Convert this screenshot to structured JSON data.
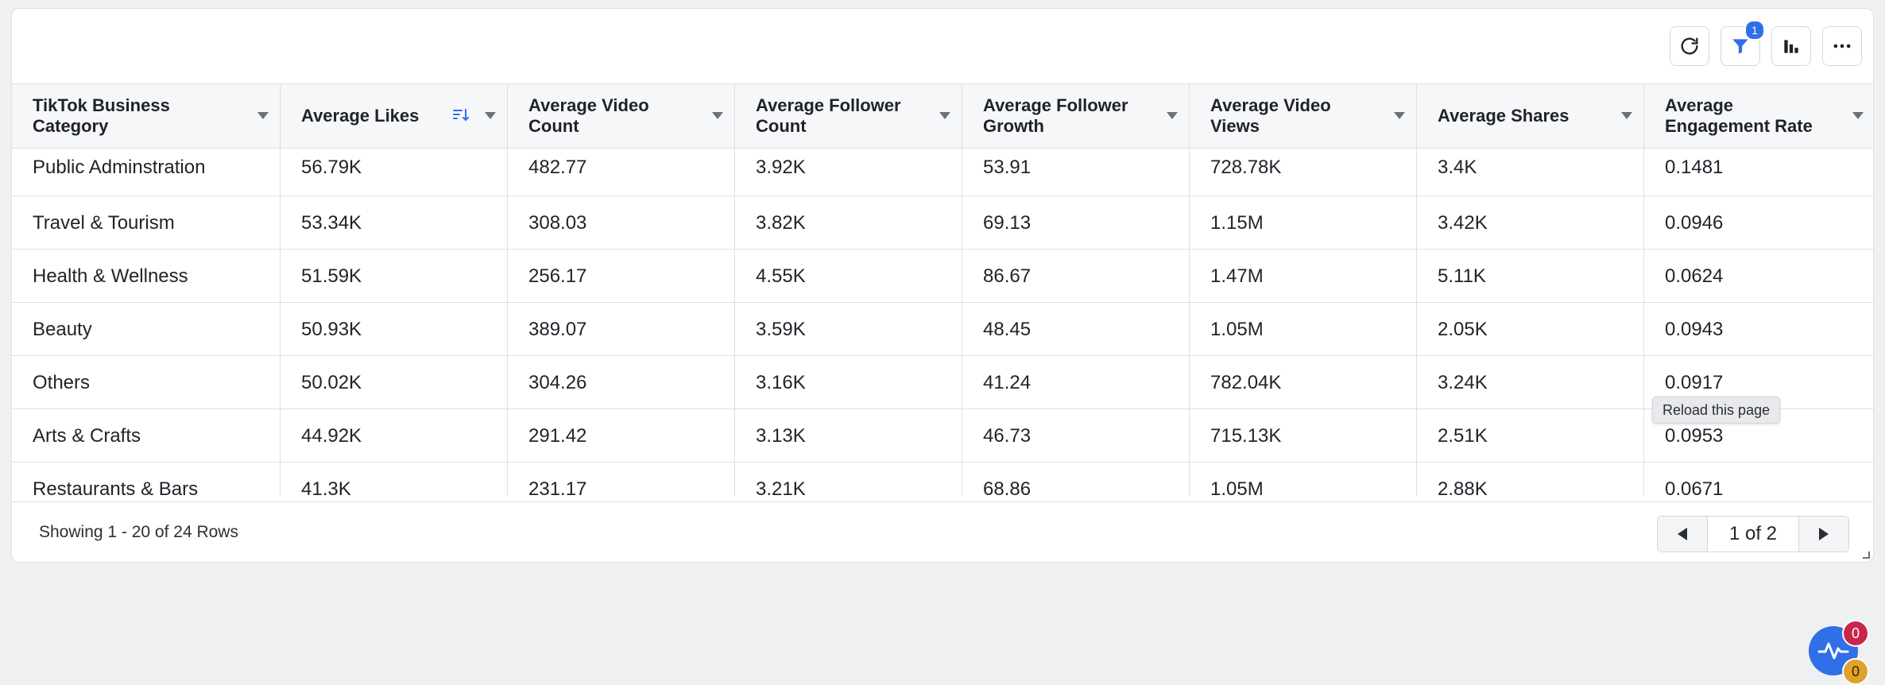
{
  "toolbar": {
    "refresh_icon": "refresh-icon",
    "filter_icon": "filter-icon",
    "filter_badge": "1",
    "chart_icon": "bar-chart-icon",
    "more_icon": "more-icon",
    "accent_color": "#2f6fe8"
  },
  "table": {
    "columns": [
      "TikTok Business Category",
      "Average Likes",
      "Average Video Count",
      "Average Follower Count",
      "Average Follower Growth",
      "Average Video Views",
      "Average Shares",
      "Average Engagement Rate"
    ],
    "sorted_column": "Average Likes",
    "rows": [
      [
        "Public Adminstration",
        "56.79K",
        "482.77",
        "3.92K",
        "53.91",
        "728.78K",
        "3.4K",
        "0.1481"
      ],
      [
        "Travel & Tourism",
        "53.34K",
        "308.03",
        "3.82K",
        "69.13",
        "1.15M",
        "3.42K",
        "0.0946"
      ],
      [
        "Health & Wellness",
        "51.59K",
        "256.17",
        "4.55K",
        "86.67",
        "1.47M",
        "5.11K",
        "0.0624"
      ],
      [
        "Beauty",
        "50.93K",
        "389.07",
        "3.59K",
        "48.45",
        "1.05M",
        "2.05K",
        "0.0943"
      ],
      [
        "Others",
        "50.02K",
        "304.26",
        "3.16K",
        "41.24",
        "782.04K",
        "3.24K",
        "0.0917"
      ],
      [
        "Arts & Crafts",
        "44.92K",
        "291.42",
        "3.13K",
        "46.73",
        "715.13K",
        "2.51K",
        "0.0953"
      ],
      [
        "Restaurants & Bars",
        "41.3K",
        "231.17",
        "3.21K",
        "68.86",
        "1.05M",
        "2.88K",
        "0.0671"
      ]
    ]
  },
  "footer": {
    "row_info": "Showing 1 - 20 of 24 Rows",
    "page_label": "1 of 2"
  },
  "tooltip": "Reload this page",
  "notifications": {
    "red_count": "0",
    "yellow_count": "0"
  }
}
